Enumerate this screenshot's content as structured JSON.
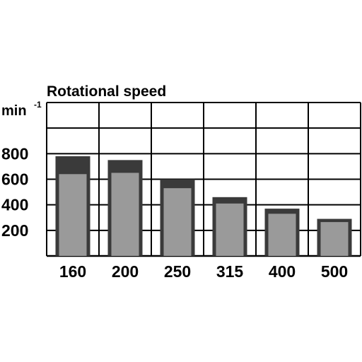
{
  "chart_data": {
    "type": "bar",
    "title": "Rotational speed",
    "ylabel": "min",
    "ylabel_superscript": "-1",
    "xlabel": "",
    "categories": [
      "160",
      "200",
      "250",
      "315",
      "400",
      "500"
    ],
    "series": [
      {
        "values": [
          780,
          750,
          600,
          460,
          370,
          290
        ]
      },
      {
        "values": [
          640,
          650,
          530,
          410,
          330,
          265
        ]
      }
    ],
    "y_ticks": [
      "800",
      "600",
      "400",
      "200"
    ],
    "y_tick_values": [
      800,
      600,
      400,
      200
    ],
    "ylim": [
      0,
      1200
    ],
    "grid": true,
    "colors": {
      "outer_bar": "#3a3a3a",
      "inner_bar": "#9a9a9a",
      "grid": "#000000",
      "background": "#ffffff"
    }
  }
}
